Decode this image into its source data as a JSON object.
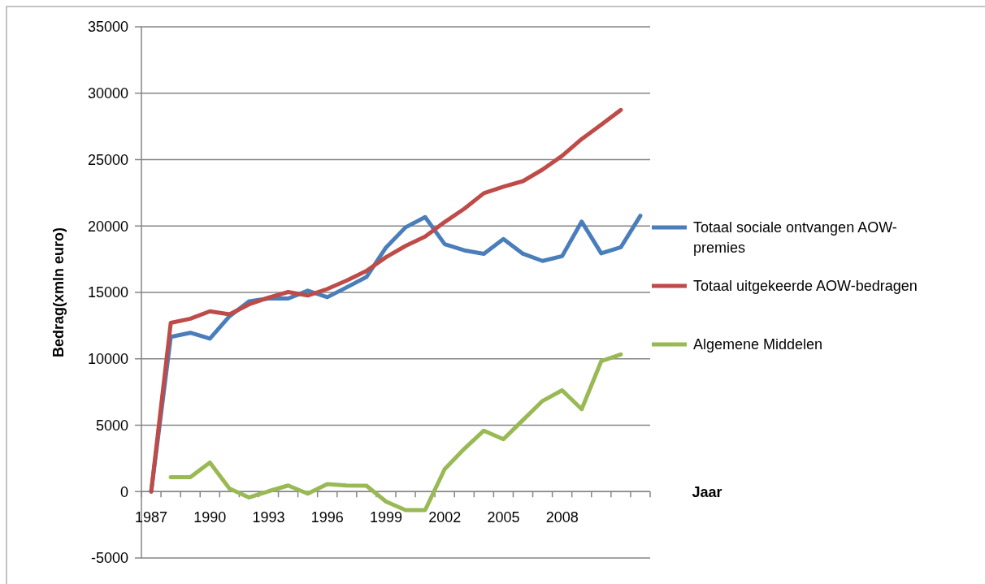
{
  "chart_data": {
    "type": "line",
    "xlabel": "Jaar",
    "ylabel": "Bedrag(xmln euro)",
    "categories": [
      "1987",
      null,
      null,
      "1990",
      null,
      null,
      "1993",
      null,
      null,
      "1996",
      null,
      null,
      "1999",
      null,
      null,
      "2002",
      null,
      null,
      "2005",
      null,
      null,
      "2008",
      null,
      null,
      null,
      null
    ],
    "series": [
      {
        "name": "Totaal sociale ontvangen AOW-premies",
        "color": "#4a7ebb",
        "values": [
          0,
          11650,
          11960,
          11520,
          13200,
          14330,
          14540,
          14540,
          15130,
          14640,
          15390,
          16160,
          18380,
          19900,
          20670,
          18630,
          18170,
          17910,
          19020,
          17910,
          17370,
          17730,
          20330,
          17940,
          18400,
          20770
        ]
      },
      {
        "name": "Totaal uitgekeerde AOW-bedragen",
        "color": "#be4b48",
        "values": [
          0,
          12710,
          13020,
          13580,
          13350,
          14100,
          14610,
          15030,
          14770,
          15260,
          15900,
          16620,
          17650,
          18500,
          19200,
          20300,
          21300,
          22470,
          22960,
          23380,
          24250,
          25280,
          26550,
          27630,
          28740,
          null
        ]
      },
      {
        "name": "Algemene Middelen",
        "color": "#98b954",
        "values": [
          null,
          1080,
          1080,
          2190,
          230,
          -440,
          30,
          460,
          -150,
          570,
          460,
          440,
          -750,
          -1390,
          -1390,
          1700,
          3220,
          4590,
          3940,
          5390,
          6830,
          7630,
          6210,
          9820,
          10330,
          null
        ]
      }
    ],
    "ylim": [
      -5000,
      35000
    ],
    "yticks": [
      -5000,
      0,
      5000,
      10000,
      15000,
      20000,
      25000,
      30000,
      35000
    ],
    "grid": "y",
    "legend": "right",
    "marker": "none",
    "line_style": "solid"
  }
}
